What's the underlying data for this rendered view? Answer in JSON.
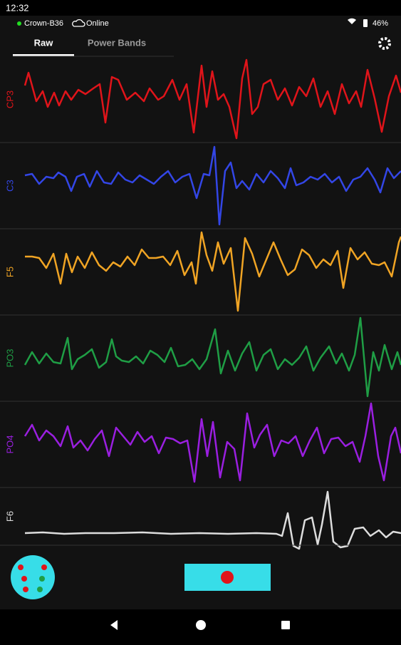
{
  "status_bar": {
    "time": "12:32",
    "battery": "46%"
  },
  "device": {
    "name": "Crown-B36",
    "status": "Online"
  },
  "tabs": [
    "Raw",
    "Power Bands"
  ],
  "channels": [
    {
      "label": "CP3",
      "color": "#e0141a"
    },
    {
      "label": "C3",
      "color": "#3346e6"
    },
    {
      "label": "F5",
      "color": "#f0a424"
    },
    {
      "label": "PO3",
      "color": "#1f9e45"
    },
    {
      "label": "PO4",
      "color": "#9a1fe0"
    },
    {
      "label": "F6",
      "color": "#dddddd"
    }
  ]
}
